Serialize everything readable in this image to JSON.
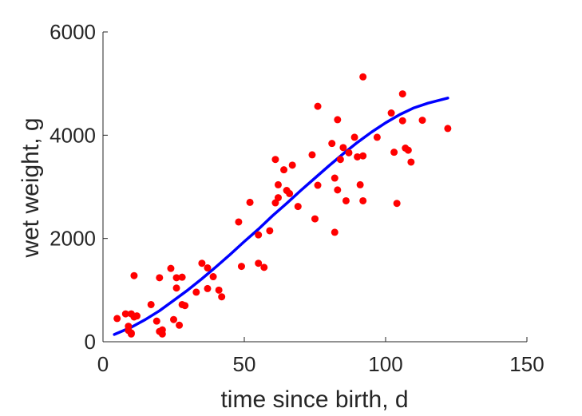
{
  "chart_data": {
    "type": "scatter",
    "xlabel": "time since birth, d",
    "ylabel": "wet weight, g",
    "xlim": [
      0,
      150
    ],
    "ylim": [
      0,
      6000
    ],
    "xticks": [
      0,
      50,
      100,
      150
    ],
    "yticks": [
      0,
      2000,
      4000,
      6000
    ],
    "xtick_labels": [
      "0",
      "50",
      "100",
      "150"
    ],
    "ytick_labels": [
      "0",
      "2000",
      "4000",
      "6000"
    ],
    "grid": false,
    "legend": "none",
    "colors": {
      "points": "#ff0000",
      "fit": "#0000ff",
      "axes": "#262626"
    },
    "series": [
      {
        "kind": "points",
        "x": [
          5,
          8,
          9,
          9,
          10,
          10,
          10,
          11,
          11,
          12,
          17,
          19,
          20,
          20,
          21,
          21,
          24,
          25,
          26,
          26,
          27,
          28,
          28,
          29,
          33,
          35,
          37,
          37,
          39,
          41,
          42,
          48,
          49,
          52,
          55,
          55,
          57,
          59,
          61,
          61,
          62,
          62,
          64,
          65,
          66,
          67,
          69,
          74,
          75,
          76,
          76,
          81,
          82,
          82,
          83,
          83,
          84,
          85,
          86,
          87,
          89,
          90,
          91,
          92,
          92,
          92,
          97,
          102,
          103,
          104,
          106,
          106,
          107,
          108,
          109,
          113,
          122
        ],
        "y": [
          450,
          540,
          300,
          220,
          540,
          150,
          170,
          480,
          1280,
          500,
          720,
          400,
          1240,
          200,
          230,
          150,
          1420,
          430,
          1040,
          1240,
          320,
          1250,
          720,
          700,
          960,
          1520,
          1430,
          1030,
          1260,
          1000,
          870,
          2320,
          1460,
          2700,
          2070,
          1520,
          1440,
          2150,
          3530,
          2690,
          3040,
          2790,
          3330,
          2930,
          2870,
          3420,
          2620,
          3620,
          2380,
          4560,
          3030,
          3840,
          2120,
          3170,
          2940,
          4300,
          3530,
          3760,
          2730,
          3660,
          3960,
          3580,
          3040,
          3600,
          2730,
          5130,
          3960,
          4430,
          3670,
          2680,
          4800,
          4280,
          3750,
          3710,
          3480,
          4290,
          4130
        ]
      },
      {
        "kind": "fit",
        "x": [
          4,
          10,
          15,
          20,
          25,
          30,
          35,
          40,
          45,
          50,
          55,
          60,
          65,
          70,
          75,
          80,
          85,
          90,
          95,
          100,
          105,
          110,
          115,
          122
        ],
        "y": [
          140,
          280,
          430,
          600,
          800,
          1000,
          1220,
          1450,
          1690,
          1940,
          2180,
          2440,
          2680,
          2930,
          3170,
          3410,
          3640,
          3860,
          4060,
          4240,
          4400,
          4530,
          4620,
          4720
        ]
      }
    ]
  }
}
